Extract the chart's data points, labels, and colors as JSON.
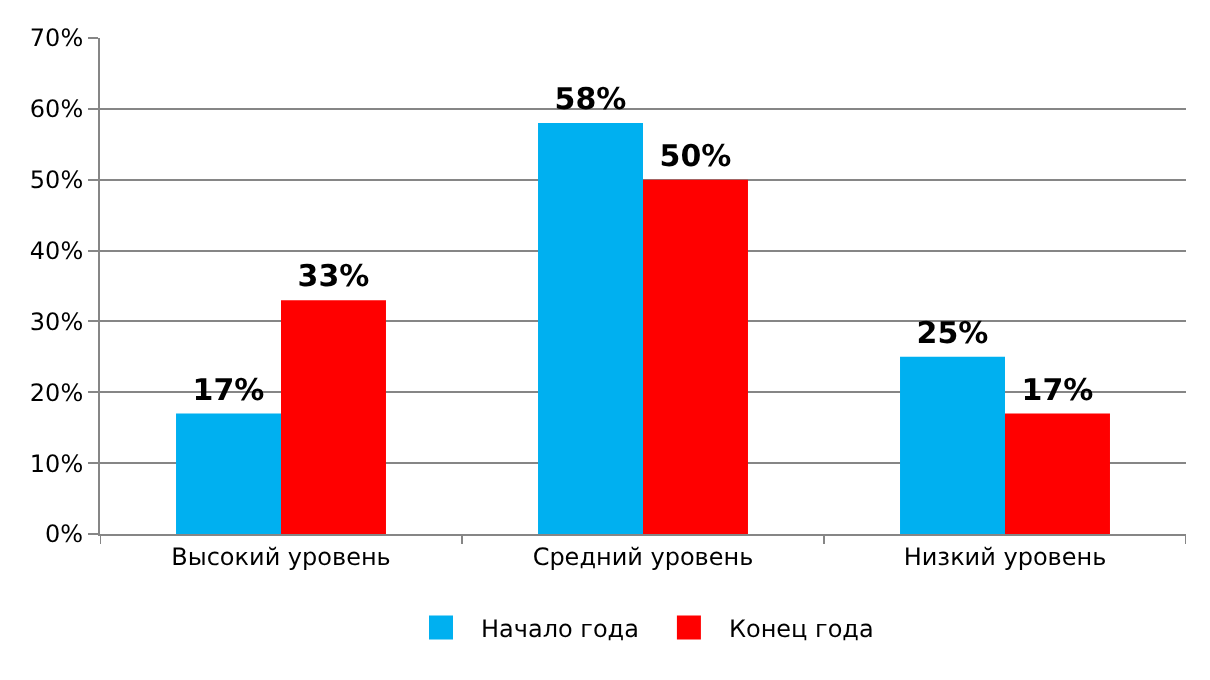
{
  "chart_data": {
    "type": "bar",
    "categories": [
      "Высокий уровень",
      "Средний уровень",
      "Низкий уровень"
    ],
    "series": [
      {
        "name": "Начало года",
        "color": "#00b0f0",
        "values": [
          17,
          58,
          25
        ],
        "value_labels": [
          "17%",
          "58%",
          "25%"
        ]
      },
      {
        "name": "Конец года",
        "color": "#ff0000",
        "values": [
          33,
          50,
          17
        ],
        "value_labels": [
          "33%",
          "50%",
          "17%"
        ]
      }
    ],
    "ylim": [
      0,
      70
    ],
    "yticks": [
      {
        "value": 0,
        "label": "0%"
      },
      {
        "value": 10,
        "label": "10%"
      },
      {
        "value": 20,
        "label": "20%"
      },
      {
        "value": 30,
        "label": "30%"
      },
      {
        "value": 40,
        "label": "40%"
      },
      {
        "value": 50,
        "label": "50%"
      },
      {
        "value": 60,
        "label": "60%"
      },
      {
        "value": 70,
        "label": "70%"
      }
    ],
    "grid": "y",
    "legend": "bottom"
  }
}
